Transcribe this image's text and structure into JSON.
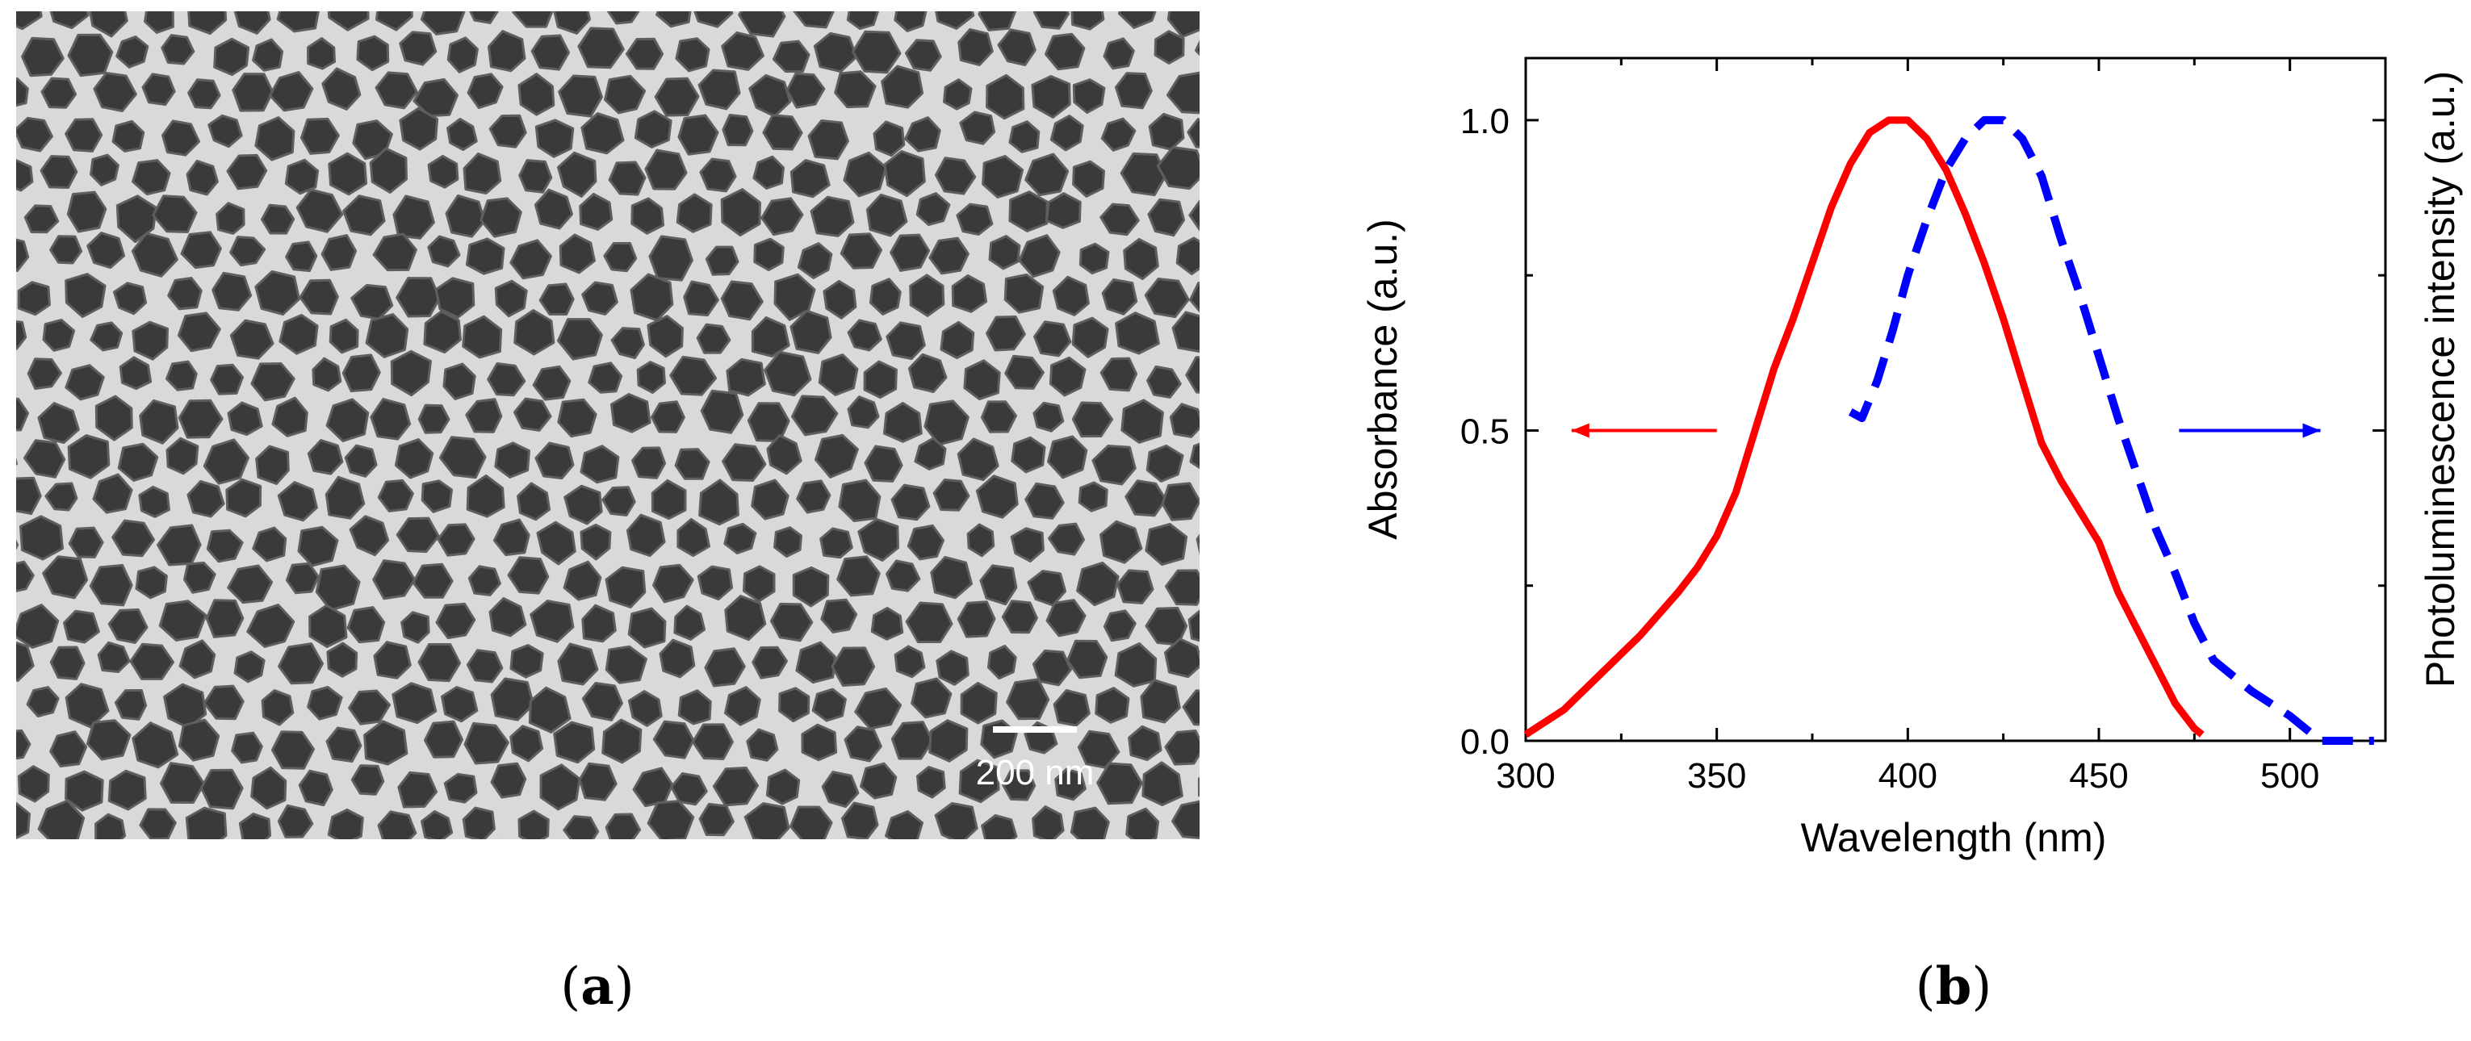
{
  "panel_a": {
    "caption_letter": "a",
    "scale_bar_label": "200 nm"
  },
  "panel_b": {
    "caption_letter": "b"
  },
  "chart_data": {
    "type": "line",
    "title": "",
    "xlabel": "Wavelength (nm)",
    "ylabel": "Absorbance (a.u.)",
    "ylabel_right": "Photoluminescence intensity (a.u.)",
    "xlim": [
      300,
      525
    ],
    "ylim": [
      0,
      1.1
    ],
    "x_ticks": [
      300,
      350,
      400,
      450,
      500
    ],
    "y_ticks": [
      "0.0",
      "0.5",
      "1.0"
    ],
    "grid": false,
    "series": [
      {
        "axis": "left",
        "color": "#ff0000",
        "style": "solid",
        "x": [
          300,
          310,
          320,
          330,
          340,
          345,
          350,
          355,
          360,
          365,
          370,
          375,
          380,
          385,
          390,
          395,
          400,
          405,
          410,
          415,
          420,
          425,
          430,
          435,
          440,
          445,
          450,
          455,
          460,
          465,
          470,
          475,
          477
        ],
        "y": [
          0.01,
          0.05,
          0.11,
          0.17,
          0.24,
          0.28,
          0.33,
          0.4,
          0.5,
          0.6,
          0.68,
          0.77,
          0.86,
          0.93,
          0.98,
          1.0,
          1.0,
          0.97,
          0.92,
          0.85,
          0.77,
          0.68,
          0.58,
          0.48,
          0.42,
          0.37,
          0.32,
          0.24,
          0.18,
          0.12,
          0.06,
          0.02,
          0.01
        ]
      },
      {
        "axis": "right",
        "color": "#0000ff",
        "style": "dashed",
        "x": [
          385,
          388,
          392,
          396,
          400,
          405,
          410,
          415,
          420,
          425,
          430,
          435,
          440,
          445,
          450,
          455,
          460,
          465,
          470,
          475,
          480,
          490,
          500,
          508,
          515,
          522
        ],
        "y": [
          0.53,
          0.52,
          0.58,
          0.66,
          0.75,
          0.84,
          0.92,
          0.97,
          1.0,
          1.0,
          0.97,
          0.91,
          0.81,
          0.72,
          0.62,
          0.52,
          0.43,
          0.34,
          0.27,
          0.19,
          0.13,
          0.08,
          0.04,
          0.0,
          0.0,
          0.0
        ]
      }
    ],
    "annotations": [
      {
        "type": "arrow",
        "direction": "left",
        "color": "#ff0000",
        "series": 0
      },
      {
        "type": "arrow",
        "direction": "right",
        "color": "#0000ff",
        "series": 1
      }
    ]
  }
}
